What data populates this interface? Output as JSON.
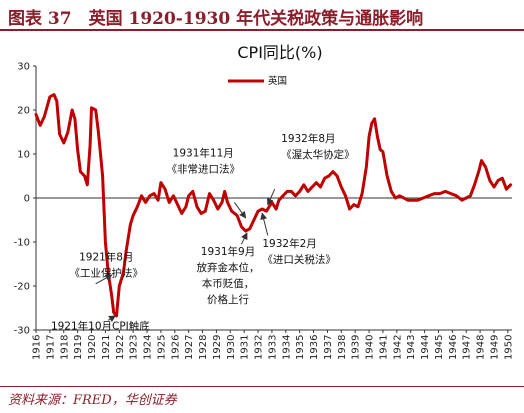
{
  "header": {
    "title": "图表 37　英国 1920-1930 年代关税政策与通胀影响"
  },
  "source": "资料来源：FRED，华创证券",
  "chart_data": {
    "type": "line",
    "title": "CPI同比(%)",
    "xlabel": "",
    "ylabel": "",
    "ylim": [
      -30,
      30
    ],
    "yticks": [
      -30,
      -20,
      -10,
      0,
      10,
      20,
      30
    ],
    "xlim": [
      1916,
      1950.3
    ],
    "xticks": [
      1916,
      1917,
      1918,
      1919,
      1920,
      1921,
      1922,
      1923,
      1924,
      1925,
      1926,
      1927,
      1928,
      1929,
      1930,
      1931,
      1932,
      1933,
      1934,
      1935,
      1936,
      1937,
      1938,
      1939,
      1940,
      1941,
      1942,
      1943,
      1944,
      1945,
      1946,
      1947,
      1948,
      1949,
      1950
    ],
    "legend": {
      "position": "top-center",
      "entries": [
        "英国"
      ]
    },
    "series": [
      {
        "name": "英国",
        "color": "#C00000",
        "points": [
          [
            1916.0,
            19.0
          ],
          [
            1916.3,
            16.5
          ],
          [
            1916.6,
            18.5
          ],
          [
            1917.0,
            23.0
          ],
          [
            1917.3,
            23.5
          ],
          [
            1917.5,
            22.0
          ],
          [
            1917.7,
            14.5
          ],
          [
            1918.0,
            12.5
          ],
          [
            1918.3,
            15.0
          ],
          [
            1918.6,
            20.0
          ],
          [
            1918.8,
            18.0
          ],
          [
            1919.0,
            11.0
          ],
          [
            1919.2,
            6.0
          ],
          [
            1919.5,
            5.0
          ],
          [
            1919.7,
            3.0
          ],
          [
            1919.9,
            12.0
          ],
          [
            1920.0,
            20.5
          ],
          [
            1920.3,
            20.0
          ],
          [
            1920.5,
            15.0
          ],
          [
            1920.8,
            5.0
          ],
          [
            1921.0,
            -10.0
          ],
          [
            1921.2,
            -17.0
          ],
          [
            1921.45,
            -22.0
          ],
          [
            1921.6,
            -26.0
          ],
          [
            1921.8,
            -26.8
          ],
          [
            1922.0,
            -20.0
          ],
          [
            1922.3,
            -17.0
          ],
          [
            1922.5,
            -12.0
          ],
          [
            1922.8,
            -6.0
          ],
          [
            1923.0,
            -4.0
          ],
          [
            1923.3,
            -2.0
          ],
          [
            1923.6,
            0.5
          ],
          [
            1923.9,
            -1.0
          ],
          [
            1924.2,
            0.5
          ],
          [
            1924.5,
            1.0
          ],
          [
            1924.8,
            -0.5
          ],
          [
            1925.0,
            3.5
          ],
          [
            1925.3,
            2.0
          ],
          [
            1925.6,
            -1.0
          ],
          [
            1925.9,
            0.5
          ],
          [
            1926.2,
            -1.5
          ],
          [
            1926.5,
            -3.5
          ],
          [
            1926.8,
            -2.0
          ],
          [
            1927.0,
            0.5
          ],
          [
            1927.3,
            1.5
          ],
          [
            1927.6,
            -2.0
          ],
          [
            1927.9,
            -3.5
          ],
          [
            1928.2,
            -3.0
          ],
          [
            1928.5,
            1.0
          ],
          [
            1928.8,
            -0.5
          ],
          [
            1929.1,
            -2.5
          ],
          [
            1929.4,
            -1.0
          ],
          [
            1929.6,
            1.5
          ],
          [
            1929.8,
            -1.0
          ],
          [
            1930.1,
            -3.0
          ],
          [
            1930.5,
            -4.0
          ],
          [
            1930.8,
            -6.5
          ],
          [
            1931.1,
            -7.5
          ],
          [
            1931.4,
            -7.0
          ],
          [
            1931.7,
            -5.0
          ],
          [
            1932.0,
            -3.0
          ],
          [
            1932.3,
            -2.5
          ],
          [
            1932.6,
            -3.0
          ],
          [
            1932.8,
            -2.0
          ],
          [
            1933.0,
            -1.0
          ],
          [
            1933.3,
            -2.5
          ],
          [
            1933.5,
            -0.5
          ],
          [
            1933.8,
            0.5
          ],
          [
            1934.1,
            1.5
          ],
          [
            1934.4,
            1.5
          ],
          [
            1934.7,
            0.5
          ],
          [
            1935.0,
            1.5
          ],
          [
            1935.3,
            3.0
          ],
          [
            1935.6,
            1.5
          ],
          [
            1935.9,
            2.5
          ],
          [
            1936.2,
            3.5
          ],
          [
            1936.5,
            2.5
          ],
          [
            1936.8,
            4.5
          ],
          [
            1937.1,
            5.0
          ],
          [
            1937.4,
            6.0
          ],
          [
            1937.7,
            5.0
          ],
          [
            1938.0,
            2.5
          ],
          [
            1938.3,
            0.5
          ],
          [
            1938.6,
            -2.5
          ],
          [
            1938.9,
            -1.5
          ],
          [
            1939.2,
            -2.0
          ],
          [
            1939.5,
            1.0
          ],
          [
            1939.8,
            7.0
          ],
          [
            1940.0,
            14.0
          ],
          [
            1940.2,
            17.0
          ],
          [
            1940.4,
            18.0
          ],
          [
            1940.6,
            14.0
          ],
          [
            1940.8,
            11.0
          ],
          [
            1941.0,
            10.5
          ],
          [
            1941.3,
            5.0
          ],
          [
            1941.6,
            1.5
          ],
          [
            1941.9,
            0.0
          ],
          [
            1942.2,
            0.5
          ],
          [
            1942.5,
            0.0
          ],
          [
            1942.8,
            -0.5
          ],
          [
            1943.1,
            -0.5
          ],
          [
            1943.5,
            -0.5
          ],
          [
            1943.9,
            0.0
          ],
          [
            1944.3,
            0.5
          ],
          [
            1944.7,
            1.0
          ],
          [
            1945.1,
            1.0
          ],
          [
            1945.5,
            1.5
          ],
          [
            1945.9,
            1.0
          ],
          [
            1946.3,
            0.5
          ],
          [
            1946.7,
            -0.5
          ],
          [
            1947.0,
            0.0
          ],
          [
            1947.3,
            0.5
          ],
          [
            1947.6,
            3.0
          ],
          [
            1947.9,
            6.0
          ],
          [
            1948.1,
            8.5
          ],
          [
            1948.4,
            7.0
          ],
          [
            1948.7,
            4.0
          ],
          [
            1949.0,
            2.5
          ],
          [
            1949.3,
            4.0
          ],
          [
            1949.6,
            4.5
          ],
          [
            1949.9,
            2.0
          ],
          [
            1950.2,
            3.0
          ]
        ]
      }
    ],
    "annotations": [
      {
        "id": "1921-aug",
        "lines": [
          "1921年8月",
          "《工业保护法》"
        ],
        "x": 1921.6,
        "y": -16.5,
        "lx": 1920.2,
        "ly": -18.5
      },
      {
        "id": "1921-oct",
        "lines": [
          "1921年10月CPI触底"
        ],
        "x": 1921.8,
        "y": -26.8,
        "lx": 1921.4,
        "ly": -28.5
      },
      {
        "id": "1931-sep",
        "lines": [
          "1931年9月",
          "放弃金本位，",
          "本币贬值，",
          "价格上行"
        ],
        "x": 1931.4,
        "y": -7.0,
        "lx": 1930.7,
        "ly": -13.0
      },
      {
        "id": "1931-nov",
        "lines": [
          "1931年11月",
          "《非常进口法》"
        ],
        "x": 1931.7,
        "y": -5.0,
        "lx": 1930.5,
        "ly": -1.0
      },
      {
        "id": "1932-feb",
        "lines": [
          "1932年2月",
          "《进口关税法》"
        ],
        "x": 1932.2,
        "y": -2.5,
        "lx": 1932.6,
        "ly": -8.0
      },
      {
        "id": "1932-aug",
        "lines": [
          "1932年8月",
          "《渥太华协定》"
        ],
        "x": 1932.6,
        "y": -3.0,
        "lx": 1932.8,
        "ly": 2.5
      }
    ]
  }
}
